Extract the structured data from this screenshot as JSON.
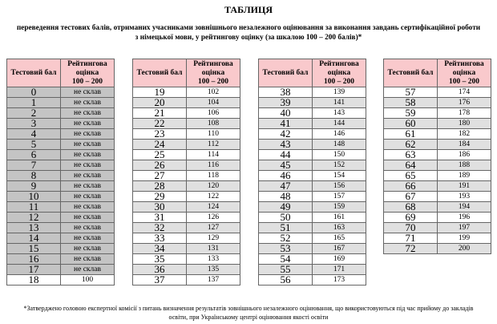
{
  "title": "ТАБЛИЦЯ",
  "subtitle": "переведення тестових балів, отриманих учасниками зовнішнього незалежного оцінювання за виконання завдань сертифікаційної роботи з німецької мови, у рейтингову оцінку (за шкалою 100 – 200 балів)*",
  "headers": {
    "score": "Тестовий бал",
    "rating_l1": "Рейтингова",
    "rating_l2": "оцінка",
    "rating_l3": "100 – 200"
  },
  "fail_label": "не склав",
  "rows": [
    [
      "0",
      "не склав"
    ],
    [
      "1",
      "не склав"
    ],
    [
      "2",
      "не склав"
    ],
    [
      "3",
      "не склав"
    ],
    [
      "4",
      "не склав"
    ],
    [
      "5",
      "не склав"
    ],
    [
      "6",
      "не склав"
    ],
    [
      "7",
      "не склав"
    ],
    [
      "8",
      "не склав"
    ],
    [
      "9",
      "не склав"
    ],
    [
      "10",
      "не склав"
    ],
    [
      "11",
      "не склав"
    ],
    [
      "12",
      "не склав"
    ],
    [
      "13",
      "не склав"
    ],
    [
      "14",
      "не склав"
    ],
    [
      "15",
      "не склав"
    ],
    [
      "16",
      "не склав"
    ],
    [
      "17",
      "не склав"
    ],
    [
      "18",
      "100"
    ],
    [
      "19",
      "102"
    ],
    [
      "20",
      "104"
    ],
    [
      "21",
      "106"
    ],
    [
      "22",
      "108"
    ],
    [
      "23",
      "110"
    ],
    [
      "24",
      "112"
    ],
    [
      "25",
      "114"
    ],
    [
      "26",
      "116"
    ],
    [
      "27",
      "118"
    ],
    [
      "28",
      "120"
    ],
    [
      "29",
      "122"
    ],
    [
      "30",
      "124"
    ],
    [
      "31",
      "126"
    ],
    [
      "32",
      "127"
    ],
    [
      "33",
      "129"
    ],
    [
      "34",
      "131"
    ],
    [
      "35",
      "133"
    ],
    [
      "36",
      "135"
    ],
    [
      "37",
      "137"
    ],
    [
      "38",
      "139"
    ],
    [
      "39",
      "141"
    ],
    [
      "40",
      "143"
    ],
    [
      "41",
      "144"
    ],
    [
      "42",
      "146"
    ],
    [
      "43",
      "148"
    ],
    [
      "44",
      "150"
    ],
    [
      "45",
      "152"
    ],
    [
      "46",
      "154"
    ],
    [
      "47",
      "156"
    ],
    [
      "48",
      "157"
    ],
    [
      "49",
      "159"
    ],
    [
      "50",
      "161"
    ],
    [
      "51",
      "163"
    ],
    [
      "52",
      "165"
    ],
    [
      "53",
      "167"
    ],
    [
      "54",
      "169"
    ],
    [
      "55",
      "171"
    ],
    [
      "56",
      "173"
    ],
    [
      "57",
      "174"
    ],
    [
      "58",
      "176"
    ],
    [
      "59",
      "178"
    ],
    [
      "60",
      "180"
    ],
    [
      "61",
      "182"
    ],
    [
      "62",
      "184"
    ],
    [
      "63",
      "186"
    ],
    [
      "64",
      "188"
    ],
    [
      "65",
      "189"
    ],
    [
      "66",
      "191"
    ],
    [
      "67",
      "193"
    ],
    [
      "68",
      "194"
    ],
    [
      "69",
      "196"
    ],
    [
      "70",
      "197"
    ],
    [
      "71",
      "199"
    ],
    [
      "72",
      "200"
    ]
  ],
  "colors": {
    "header_bg": "#f9c9cc",
    "fail_row_bg": "#c4c4c4",
    "stripe_bg": "#e0e0e0"
  },
  "footnote": "*Затверджено головою експертної комісії з питань визначення результатів зовнішнього незалежного оцінювання, що використовуються під час прийому до закладів освіти, при Українському центрі оцінювання якості освіти"
}
